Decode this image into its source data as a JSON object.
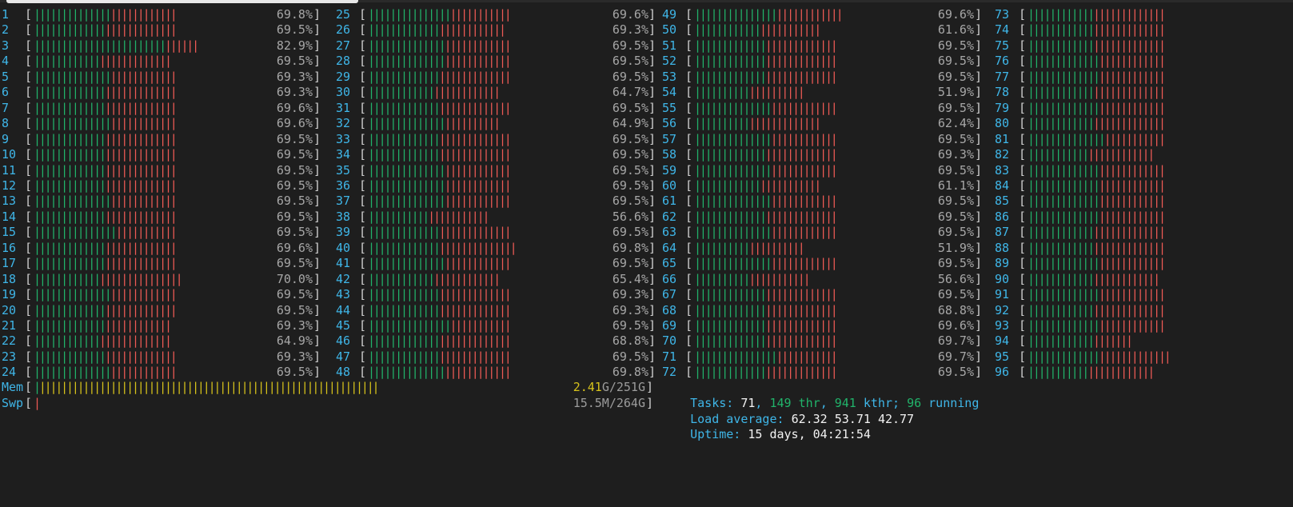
{
  "cpu_columns": [
    {
      "cpus": [
        {
          "id": "1",
          "pct": "69.8%",
          "g": 14,
          "r": 12
        },
        {
          "id": "2",
          "pct": "69.5%",
          "g": 13,
          "r": 13
        },
        {
          "id": "3",
          "pct": "82.9%",
          "g": 24,
          "r": 6
        },
        {
          "id": "4",
          "pct": "69.5%",
          "g": 12,
          "r": 13
        },
        {
          "id": "5",
          "pct": "69.3%",
          "g": 14,
          "r": 12
        },
        {
          "id": "6",
          "pct": "69.3%",
          "g": 13,
          "r": 13
        },
        {
          "id": "7",
          "pct": "69.6%",
          "g": 13,
          "r": 13
        },
        {
          "id": "8",
          "pct": "69.6%",
          "g": 14,
          "r": 12
        },
        {
          "id": "9",
          "pct": "69.5%",
          "g": 13,
          "r": 13
        },
        {
          "id": "10",
          "pct": "69.5%",
          "g": 13,
          "r": 13
        },
        {
          "id": "11",
          "pct": "69.5%",
          "g": 13,
          "r": 13
        },
        {
          "id": "12",
          "pct": "69.5%",
          "g": 13,
          "r": 13
        },
        {
          "id": "13",
          "pct": "69.5%",
          "g": 14,
          "r": 12
        },
        {
          "id": "14",
          "pct": "69.5%",
          "g": 13,
          "r": 13
        },
        {
          "id": "15",
          "pct": "69.5%",
          "g": 15,
          "r": 11
        },
        {
          "id": "16",
          "pct": "69.6%",
          "g": 13,
          "r": 13
        },
        {
          "id": "17",
          "pct": "69.5%",
          "g": 13,
          "r": 13
        },
        {
          "id": "18",
          "pct": "70.0%",
          "g": 12,
          "r": 15
        },
        {
          "id": "19",
          "pct": "69.5%",
          "g": 14,
          "r": 12
        },
        {
          "id": "20",
          "pct": "69.5%",
          "g": 13,
          "r": 13
        },
        {
          "id": "21",
          "pct": "69.3%",
          "g": 13,
          "r": 12
        },
        {
          "id": "22",
          "pct": "64.9%",
          "g": 12,
          "r": 13
        },
        {
          "id": "23",
          "pct": "69.3%",
          "g": 13,
          "r": 13
        },
        {
          "id": "24",
          "pct": "69.5%",
          "g": 14,
          "r": 12
        }
      ]
    },
    {
      "cpus": [
        {
          "id": "25",
          "pct": "69.6%",
          "g": 15,
          "r": 11
        },
        {
          "id": "26",
          "pct": "69.3%",
          "g": 13,
          "r": 12
        },
        {
          "id": "27",
          "pct": "69.5%",
          "g": 14,
          "r": 12
        },
        {
          "id": "28",
          "pct": "69.5%",
          "g": 14,
          "r": 12
        },
        {
          "id": "29",
          "pct": "69.5%",
          "g": 13,
          "r": 13
        },
        {
          "id": "30",
          "pct": "64.7%",
          "g": 12,
          "r": 12
        },
        {
          "id": "31",
          "pct": "69.5%",
          "g": 13,
          "r": 13
        },
        {
          "id": "32",
          "pct": "64.9%",
          "g": 14,
          "r": 10
        },
        {
          "id": "33",
          "pct": "69.5%",
          "g": 13,
          "r": 13
        },
        {
          "id": "34",
          "pct": "69.5%",
          "g": 13,
          "r": 13
        },
        {
          "id": "35",
          "pct": "69.5%",
          "g": 14,
          "r": 12
        },
        {
          "id": "36",
          "pct": "69.5%",
          "g": 14,
          "r": 12
        },
        {
          "id": "37",
          "pct": "69.5%",
          "g": 14,
          "r": 12
        },
        {
          "id": "38",
          "pct": "56.6%",
          "g": 11,
          "r": 11
        },
        {
          "id": "39",
          "pct": "69.5%",
          "g": 13,
          "r": 13
        },
        {
          "id": "40",
          "pct": "69.8%",
          "g": 13,
          "r": 14
        },
        {
          "id": "41",
          "pct": "69.5%",
          "g": 14,
          "r": 12
        },
        {
          "id": "42",
          "pct": "65.4%",
          "g": 12,
          "r": 12
        },
        {
          "id": "43",
          "pct": "69.3%",
          "g": 13,
          "r": 13
        },
        {
          "id": "44",
          "pct": "69.3%",
          "g": 13,
          "r": 13
        },
        {
          "id": "45",
          "pct": "69.5%",
          "g": 15,
          "r": 11
        },
        {
          "id": "46",
          "pct": "68.8%",
          "g": 13,
          "r": 13
        },
        {
          "id": "47",
          "pct": "69.5%",
          "g": 13,
          "r": 13
        },
        {
          "id": "48",
          "pct": "69.8%",
          "g": 14,
          "r": 12
        }
      ]
    },
    {
      "cpus": [
        {
          "id": "49",
          "pct": "69.6%",
          "g": 15,
          "r": 12
        },
        {
          "id": "50",
          "pct": "61.6%",
          "g": 12,
          "r": 11
        },
        {
          "id": "51",
          "pct": "69.5%",
          "g": 13,
          "r": 13
        },
        {
          "id": "52",
          "pct": "69.5%",
          "g": 13,
          "r": 13
        },
        {
          "id": "53",
          "pct": "69.5%",
          "g": 13,
          "r": 13
        },
        {
          "id": "54",
          "pct": "51.9%",
          "g": 10,
          "r": 10
        },
        {
          "id": "55",
          "pct": "69.5%",
          "g": 14,
          "r": 12
        },
        {
          "id": "56",
          "pct": "62.4%",
          "g": 10,
          "r": 13
        },
        {
          "id": "57",
          "pct": "69.5%",
          "g": 14,
          "r": 12
        },
        {
          "id": "58",
          "pct": "69.3%",
          "g": 13,
          "r": 13
        },
        {
          "id": "59",
          "pct": "69.5%",
          "g": 14,
          "r": 12
        },
        {
          "id": "60",
          "pct": "61.1%",
          "g": 12,
          "r": 11
        },
        {
          "id": "61",
          "pct": "69.5%",
          "g": 14,
          "r": 12
        },
        {
          "id": "62",
          "pct": "69.5%",
          "g": 13,
          "r": 13
        },
        {
          "id": "63",
          "pct": "69.5%",
          "g": 14,
          "r": 12
        },
        {
          "id": "64",
          "pct": "51.9%",
          "g": 10,
          "r": 10
        },
        {
          "id": "65",
          "pct": "69.5%",
          "g": 14,
          "r": 12
        },
        {
          "id": "66",
          "pct": "56.6%",
          "g": 10,
          "r": 11
        },
        {
          "id": "67",
          "pct": "69.5%",
          "g": 13,
          "r": 13
        },
        {
          "id": "68",
          "pct": "68.8%",
          "g": 13,
          "r": 13
        },
        {
          "id": "69",
          "pct": "69.6%",
          "g": 13,
          "r": 13
        },
        {
          "id": "70",
          "pct": "69.7%",
          "g": 13,
          "r": 13
        },
        {
          "id": "71",
          "pct": "69.7%",
          "g": 15,
          "r": 11
        },
        {
          "id": "72",
          "pct": "69.5%",
          "g": 13,
          "r": 13
        }
      ]
    },
    {
      "cpus": [
        {
          "id": "73",
          "pct": "",
          "g": 12,
          "r": 13
        },
        {
          "id": "74",
          "pct": "",
          "g": 12,
          "r": 13
        },
        {
          "id": "75",
          "pct": "",
          "g": 12,
          "r": 13
        },
        {
          "id": "76",
          "pct": "",
          "g": 13,
          "r": 12
        },
        {
          "id": "77",
          "pct": "",
          "g": 13,
          "r": 12
        },
        {
          "id": "78",
          "pct": "",
          "g": 12,
          "r": 13
        },
        {
          "id": "79",
          "pct": "",
          "g": 13,
          "r": 12
        },
        {
          "id": "80",
          "pct": "",
          "g": 12,
          "r": 13
        },
        {
          "id": "81",
          "pct": "",
          "g": 14,
          "r": 11
        },
        {
          "id": "82",
          "pct": "",
          "g": 11,
          "r": 12
        },
        {
          "id": "83",
          "pct": "",
          "g": 13,
          "r": 12
        },
        {
          "id": "84",
          "pct": "",
          "g": 13,
          "r": 12
        },
        {
          "id": "85",
          "pct": "",
          "g": 13,
          "r": 12
        },
        {
          "id": "86",
          "pct": "",
          "g": 13,
          "r": 12
        },
        {
          "id": "87",
          "pct": "",
          "g": 12,
          "r": 13
        },
        {
          "id": "88",
          "pct": "",
          "g": 12,
          "r": 13
        },
        {
          "id": "89",
          "pct": "",
          "g": 13,
          "r": 12
        },
        {
          "id": "90",
          "pct": "",
          "g": 12,
          "r": 12
        },
        {
          "id": "91",
          "pct": "",
          "g": 13,
          "r": 12
        },
        {
          "id": "92",
          "pct": "",
          "g": 12,
          "r": 13
        },
        {
          "id": "93",
          "pct": "",
          "g": 13,
          "r": 12
        },
        {
          "id": "94",
          "pct": "",
          "g": 12,
          "r": 7
        },
        {
          "id": "95",
          "pct": "",
          "g": 13,
          "r": 13
        },
        {
          "id": "96",
          "pct": "",
          "g": 11,
          "r": 12
        }
      ]
    }
  ],
  "mem": {
    "label": "Mem",
    "used": "2.41",
    "used_unit": "G",
    "total": "/251G",
    "green": 1,
    "yellow": 62
  },
  "swp": {
    "label": "Swp",
    "value": "15.5M/264G",
    "red": 1
  },
  "tasks": {
    "label": "Tasks: ",
    "count": "71",
    "sep1": ", ",
    "thr": "149",
    "thr_label": " thr",
    "sep2": ", ",
    "kthr": "941",
    "kthr_label": " kthr",
    "sep3": "; ",
    "running": "96",
    "running_label": " running"
  },
  "load": {
    "label": "Load average: ",
    "v1": "62.32",
    "v2": "53.71",
    "v3": "42.77"
  },
  "uptime": {
    "label": "Uptime: ",
    "value": "15 days, 04:21:54"
  },
  "colors": {
    "background": "#1e1e1e",
    "green": "#21b36a",
    "red": "#ee5a55",
    "yellow": "#d6c21b",
    "cyan": "#3fb6e8"
  }
}
